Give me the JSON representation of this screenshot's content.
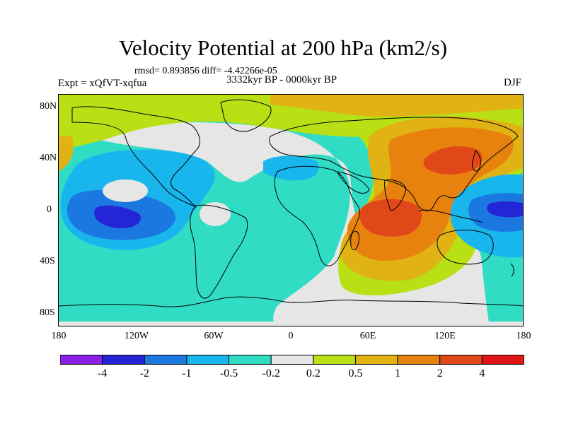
{
  "title": "Velocity Potential at 200 hPa (km2/s)",
  "stats": "rmsd= 0.893856 diff= -4.42266e-05",
  "experiment": "Expt = xQfVT-xqfua",
  "period": "3332kyr BP - 0000kyr BP",
  "season": "DJF",
  "lat_labels": [
    "80N",
    "40N",
    "0",
    "40S",
    "80S"
  ],
  "lon_labels": [
    "180",
    "120W",
    "60W",
    "0",
    "60E",
    "120E",
    "180"
  ],
  "colorbar": {
    "labels": [
      "-4",
      "-2",
      "-1",
      "-0.5",
      "-0.2",
      "0.2",
      "0.5",
      "1",
      "2",
      "4"
    ],
    "colors": [
      "#8a1fe6",
      "#2525d8",
      "#1a78e0",
      "#18b6ec",
      "#30dcc4",
      "#e6e6e6",
      "#b8e014",
      "#e0b214",
      "#e8820e",
      "#e0481a",
      "#e01414"
    ]
  }
}
